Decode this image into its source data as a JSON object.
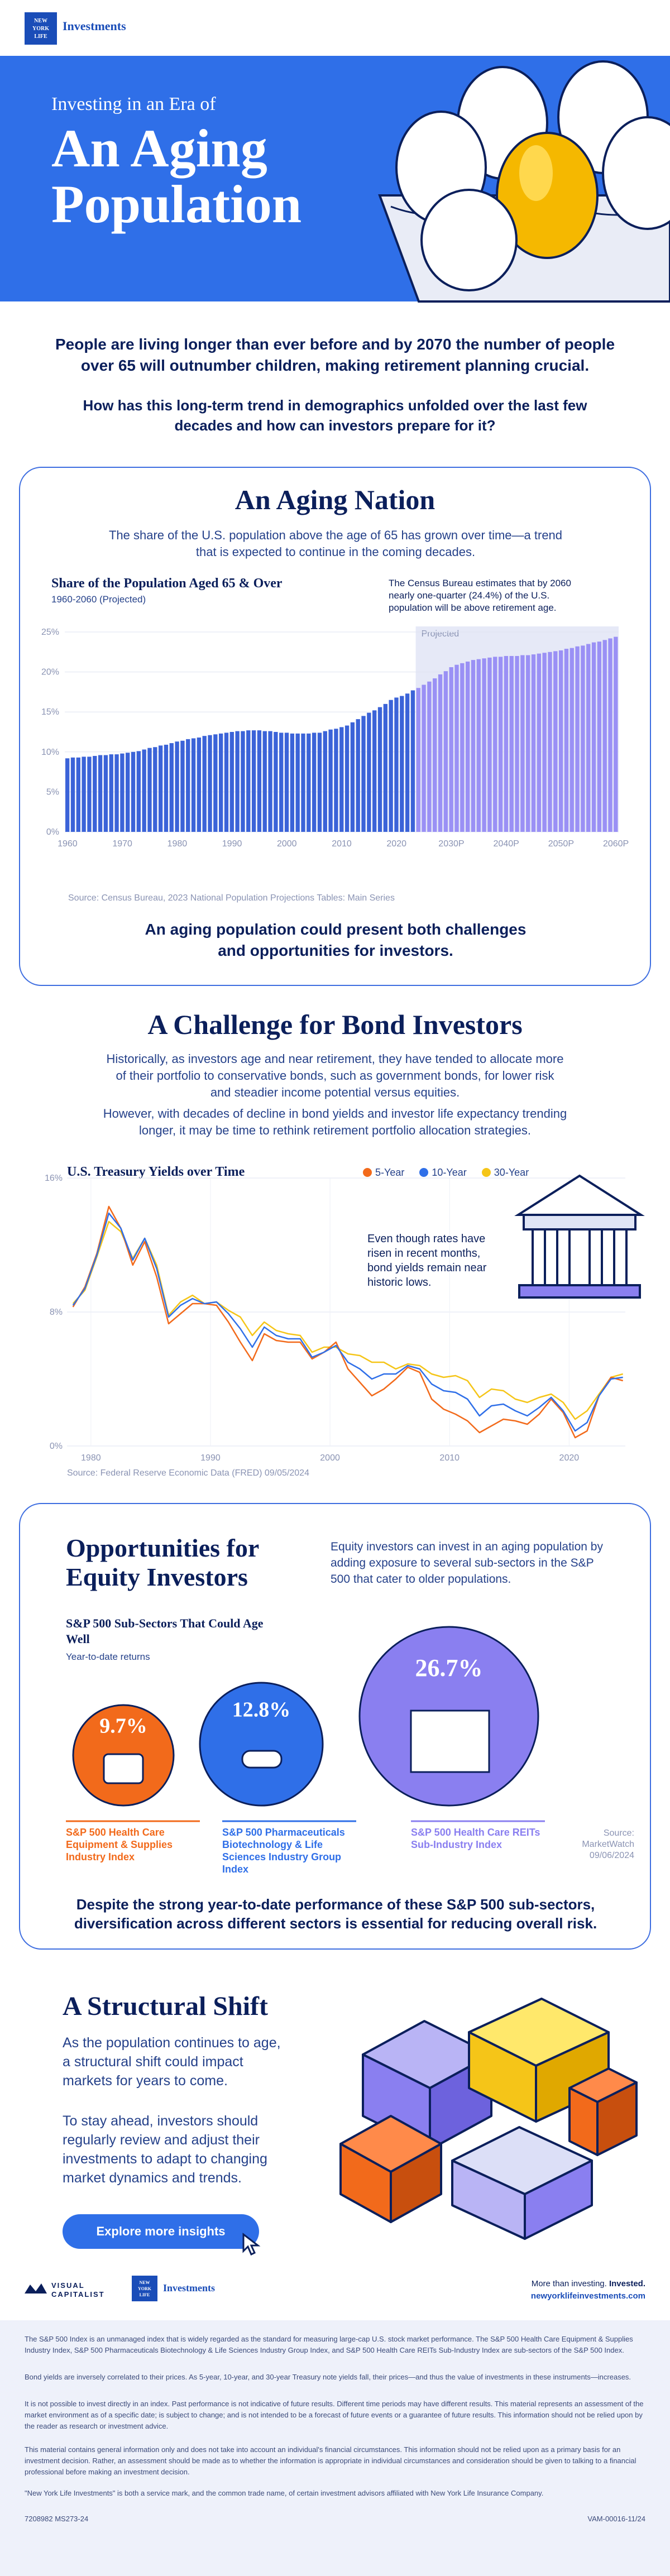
{
  "header": {
    "logo_lines": [
      "NEW",
      "YORK",
      "LIFE"
    ],
    "brand": "Investments"
  },
  "hero": {
    "subtitle": "Investing in an Era of",
    "title_line1": "An Aging",
    "title_line2": "Population"
  },
  "intro": {
    "statement": "People are living longer than ever before and by 2070 the number of people over 65 will outnumber children, making retirement planning crucial.",
    "question": "How has this long-term trend in demographics unfolded over the last few decades and how can investors prepare for it?"
  },
  "aging_nation": {
    "title": "An Aging Nation",
    "description": "The share of the U.S. population above the age of 65 has grown over time—a trend that is expected to continue in the coming decades.",
    "chart_title": "Share of the Population Aged 65 & Over",
    "chart_subtitle": "1960-2060 (Projected)",
    "annotation": "The Census Bureau estimates that by 2060 nearly one-quarter (24.4%) of the U.S. population will be above retirement age.",
    "projected_label": "Projected",
    "source": "Source: Census Bureau, 2023 National Population Projections Tables: Main Series",
    "conclusion": "An aging population could present both challenges and opportunities for investors."
  },
  "bond": {
    "title": "A Challenge for Bond Investors",
    "para1": "Historically, as investors age and near retirement, they have tended to allocate more of their portfolio to conservative bonds, such as government bonds, for lower risk and steadier income potential versus equities.",
    "para2": "However, with decades of decline in bond yields and investor life expectancy trending longer, it may be time to rethink retirement portfolio allocation strategies.",
    "chart_title": "U.S. Treasury Yields over Time",
    "legend": [
      "5-Year",
      "10-Year",
      "30-Year"
    ],
    "annotation": "Even though rates have risen in recent months, bond yields remain near historic lows.",
    "source": "Source: Federal Reserve Economic Data (FRED) 09/05/2024"
  },
  "equity": {
    "title_line1": "Opportunities for",
    "title_line2": "Equity Investors",
    "description": "Equity investors can invest in an aging population by adding exposure to several sub-sectors in the S&P 500 that cater to older populations.",
    "chart_title": "S&P 500 Sub-Sectors That Could Age Well",
    "chart_subtitle": "Year-to-date returns",
    "source": "Source: MarketWatch 09/06/2024",
    "conclusion": "Despite the strong year-to-date performance of these S&P 500 sub-sectors, diversification across different sectors is essential for reducing overall risk."
  },
  "structural": {
    "title": "A Structural Shift",
    "para1": "As the population continues to age, a structural shift could impact markets for years to come.",
    "para2": "To stay ahead, investors should regularly review and adjust their investments to adapt to changing market dynamics and trends.",
    "button": "Explore more insights"
  },
  "footer": {
    "vc_line1": "VISUAL",
    "vc_line2": "CAPITALIST",
    "tagline_a": "More than investing. ",
    "tagline_b": "Invested.",
    "url": "newyorklifeinvestments.com",
    "notes": [
      "The S&P 500 Index is an unmanaged index that is widely regarded as the standard for measuring large-cap U.S. stock market performance. The S&P 500 Health Care Equipment & Supplies Industry Index, S&P 500 Pharmaceuticals Biotechnology & Life Sciences Industry Group Index, and S&P 500 Health Care REITs Sub-Industry Index are sub-sectors of the S&P 500 Index.",
      "Bond yields are inversely correlated to their prices. As 5-year, 10-year, and 30-year Treasury note yields fall, their prices—and thus the value of investments in these instruments—increases.",
      "It is not possible to invest directly in an index. Past performance is not indicative of future results. Different time periods may have different results. This material represents an assessment of the market environment as of a specific date; is subject to change; and is not intended to be a forecast of future events or a guarantee of future results. This information should not be relied upon by the reader as research or investment advice.",
      "This material contains general information only and does not take into account an individual's financial circumstances. This information should not be relied upon as a primary basis for an investment decision. Rather, an assessment should be made as to whether the information is appropriate in individual circumstances and consideration should be given to talking to a financial professional before making an investment decision.",
      "\"New York Life Investments\" is both a service mark, and the common trade name, of certain investment advisors affiliated with New York Life Insurance Company."
    ],
    "code_left": "7208982  MS273-24",
    "code_right": "VAM-00016-11/24"
  },
  "colors": {
    "blue": "#2f6fe8",
    "navy": "#0b1f5b",
    "purple": "#8a7ff0",
    "orange": "#f26a1b",
    "yellow": "#f5c518",
    "bond_blue": "#2f6fe8"
  },
  "chart_data": [
    {
      "type": "bar",
      "title": "Share of the Population Aged 65 & Over",
      "subtitle": "1960-2060 (Projected)",
      "ylim": [
        0,
        25
      ],
      "yticks": [
        "0%",
        "5%",
        "10%",
        "15%",
        "20%",
        "25%"
      ],
      "xticks": [
        "1960",
        "1970",
        "1980",
        "1990",
        "2000",
        "2010",
        "2020",
        "2030P",
        "2040P",
        "2050P",
        "2060P"
      ],
      "projected_from": 2024,
      "x": [
        1960,
        1961,
        1962,
        1963,
        1964,
        1965,
        1966,
        1967,
        1968,
        1969,
        1970,
        1971,
        1972,
        1973,
        1974,
        1975,
        1976,
        1977,
        1978,
        1979,
        1980,
        1981,
        1982,
        1983,
        1984,
        1985,
        1986,
        1987,
        1988,
        1989,
        1990,
        1991,
        1992,
        1993,
        1994,
        1995,
        1996,
        1997,
        1998,
        1999,
        2000,
        2001,
        2002,
        2003,
        2004,
        2005,
        2006,
        2007,
        2008,
        2009,
        2010,
        2011,
        2012,
        2013,
        2014,
        2015,
        2016,
        2017,
        2018,
        2019,
        2020,
        2021,
        2022,
        2023,
        2024,
        2025,
        2026,
        2027,
        2028,
        2029,
        2030,
        2031,
        2032,
        2033,
        2034,
        2035,
        2036,
        2037,
        2038,
        2039,
        2040,
        2041,
        2042,
        2043,
        2044,
        2045,
        2046,
        2047,
        2048,
        2049,
        2050,
        2051,
        2052,
        2053,
        2054,
        2055,
        2056,
        2057,
        2058,
        2059,
        2060
      ],
      "values": [
        9.2,
        9.3,
        9.3,
        9.4,
        9.4,
        9.5,
        9.6,
        9.6,
        9.7,
        9.7,
        9.8,
        9.9,
        10.0,
        10.1,
        10.3,
        10.5,
        10.6,
        10.8,
        10.9,
        11.1,
        11.3,
        11.4,
        11.6,
        11.7,
        11.8,
        12.0,
        12.1,
        12.2,
        12.3,
        12.4,
        12.5,
        12.6,
        12.6,
        12.7,
        12.7,
        12.7,
        12.6,
        12.6,
        12.5,
        12.4,
        12.4,
        12.3,
        12.3,
        12.3,
        12.3,
        12.4,
        12.4,
        12.6,
        12.8,
        12.9,
        13.1,
        13.3,
        13.7,
        14.1,
        14.5,
        14.9,
        15.2,
        15.6,
        16.0,
        16.5,
        16.8,
        17.0,
        17.3,
        17.7,
        18.0,
        18.4,
        18.8,
        19.2,
        19.7,
        20.1,
        20.6,
        20.9,
        21.1,
        21.3,
        21.5,
        21.6,
        21.7,
        21.8,
        21.9,
        21.9,
        22.0,
        22.0,
        22.0,
        22.1,
        22.1,
        22.2,
        22.3,
        22.4,
        22.5,
        22.6,
        22.7,
        22.9,
        23.0,
        23.2,
        23.3,
        23.5,
        23.7,
        23.8,
        24.0,
        24.2,
        24.4
      ],
      "annotations": [
        "The Census Bureau estimates that by 2060 nearly one-quarter (24.4%) of the U.S. population will be above retirement age."
      ]
    },
    {
      "type": "line",
      "title": "U.S. Treasury Yields over Time",
      "ylim": [
        0,
        16
      ],
      "yticks": [
        "0%",
        "8%",
        "16%"
      ],
      "xticks": [
        "1980",
        "1990",
        "2000",
        "2010",
        "2020"
      ],
      "x": [
        1978,
        1979,
        1980,
        1981,
        1982,
        1983,
        1984,
        1985,
        1986,
        1987,
        1988,
        1989,
        1990,
        1991,
        1992,
        1993,
        1994,
        1995,
        1996,
        1997,
        1998,
        1999,
        2000,
        2001,
        2002,
        2003,
        2004,
        2005,
        2006,
        2007,
        2008,
        2009,
        2010,
        2011,
        2012,
        2013,
        2014,
        2015,
        2016,
        2017,
        2018,
        2019,
        2020,
        2021,
        2022,
        2023,
        2024
      ],
      "series": [
        {
          "name": "5-Year",
          "color": "#f26a1b",
          "values": [
            8.3,
            9.5,
            11.5,
            14.3,
            13.0,
            10.8,
            12.2,
            10.1,
            7.3,
            7.9,
            8.5,
            8.5,
            8.4,
            7.4,
            6.2,
            5.1,
            6.7,
            6.3,
            6.2,
            6.2,
            5.2,
            5.6,
            6.2,
            4.6,
            3.8,
            3.0,
            3.4,
            4.0,
            4.7,
            4.4,
            2.8,
            2.2,
            1.9,
            1.5,
            0.8,
            1.2,
            1.6,
            1.5,
            1.3,
            1.9,
            2.8,
            2.0,
            0.5,
            0.9,
            3.0,
            4.1,
            3.9
          ]
        },
        {
          "name": "10-Year",
          "color": "#2f6fe8",
          "values": [
            8.4,
            9.4,
            11.4,
            13.9,
            13.0,
            11.1,
            12.4,
            10.6,
            7.7,
            8.4,
            8.8,
            8.5,
            8.6,
            7.9,
            7.0,
            5.9,
            7.1,
            6.6,
            6.4,
            6.4,
            5.3,
            5.6,
            6.0,
            5.0,
            4.6,
            4.0,
            4.3,
            4.3,
            4.8,
            4.6,
            3.7,
            3.3,
            3.2,
            2.8,
            1.8,
            2.4,
            2.5,
            2.1,
            1.8,
            2.3,
            2.9,
            2.1,
            0.9,
            1.4,
            3.0,
            4.0,
            4.1
          ]
        },
        {
          "name": "30-Year",
          "color": "#f5c518",
          "values": [
            8.5,
            9.3,
            11.3,
            13.4,
            12.8,
            11.2,
            12.4,
            10.8,
            7.8,
            8.6,
            9.0,
            8.5,
            8.6,
            8.1,
            7.7,
            6.6,
            7.4,
            6.9,
            6.7,
            6.6,
            5.6,
            5.9,
            5.9,
            5.5,
            5.4,
            5.0,
            5.0,
            4.6,
            4.9,
            4.8,
            4.3,
            4.1,
            4.2,
            3.9,
            2.9,
            3.4,
            3.3,
            2.8,
            2.6,
            2.9,
            3.1,
            2.6,
            1.6,
            2.1,
            3.1,
            4.1,
            4.3
          ]
        }
      ],
      "annotations": [
        "Even though rates have risen in recent months, bond yields remain near historic lows."
      ]
    },
    {
      "type": "bubble",
      "title": "S&P 500 Sub-Sectors That Could Age Well",
      "subtitle": "Year-to-date returns",
      "categories": [
        "S&P 500 Health Care Equipment & Supplies Industry Index",
        "S&P 500 Pharmaceuticals Biotechnology & Life Sciences Industry Group Index",
        "S&P 500 Health Care REITs Sub-Industry Index"
      ],
      "values": [
        9.7,
        12.8,
        26.7
      ],
      "labels": [
        "9.7%",
        "12.8%",
        "26.7%"
      ],
      "colors": [
        "#f26a1b",
        "#2f6fe8",
        "#8a7ff0"
      ]
    }
  ]
}
